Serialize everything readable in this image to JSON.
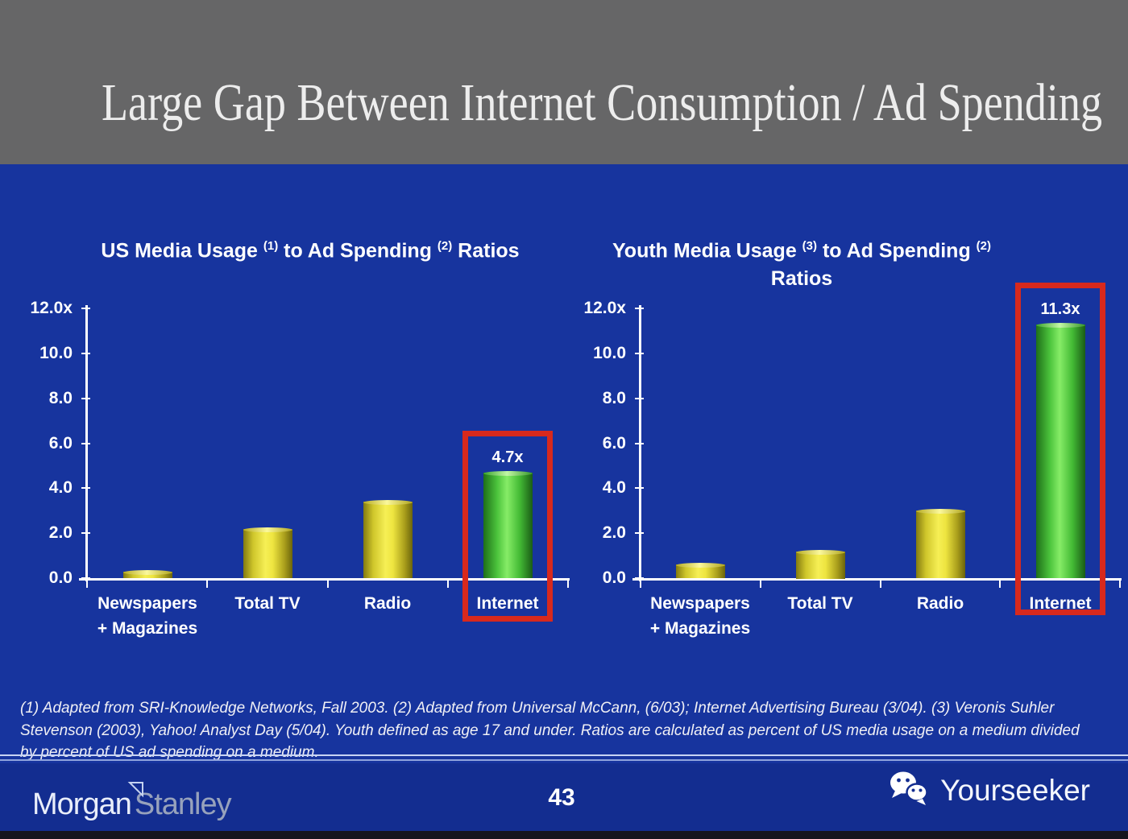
{
  "header": {
    "title": "Large Gap Between Internet Consumption / Ad Spending"
  },
  "chart_data": [
    {
      "type": "bar",
      "title": "US Media Usage (1) to Ad Spending (2) Ratios",
      "title_segments": [
        {
          "text": "US Media Usage "
        },
        {
          "sup": "(1)"
        },
        {
          "text": " to Ad Spending "
        },
        {
          "sup": "(2)"
        },
        {
          "text": " Ratios"
        }
      ],
      "categories": [
        "Newspapers + Magazines",
        "Total TV",
        "Radio",
        "Internet"
      ],
      "category_display": [
        [
          "Newspapers",
          "+ Magazines"
        ],
        [
          "Total TV"
        ],
        [
          "Radio"
        ],
        [
          "Internet"
        ]
      ],
      "values": [
        0.3,
        2.2,
        3.4,
        4.7
      ],
      "ylim": [
        0,
        12
      ],
      "ytick_labels": [
        "12.0x",
        "10.0",
        "8.0",
        "6.0",
        "4.0",
        "2.0",
        "0.0"
      ],
      "bar_styles": [
        "yellow",
        "yellow",
        "yellow",
        "green"
      ],
      "highlight": {
        "index": 3,
        "value_label": "4.7x"
      },
      "grid": false,
      "legend": "none"
    },
    {
      "type": "bar",
      "title": "Youth Media Usage (3) to Ad Spending (2) Ratios",
      "title_segments": [
        {
          "text": "Youth Media Usage "
        },
        {
          "sup": "(3)"
        },
        {
          "text": " to Ad Spending "
        },
        {
          "sup": "(2)"
        },
        {
          "break": true
        },
        {
          "text": "Ratios"
        }
      ],
      "categories": [
        "Newspapers + Magazines",
        "Total TV",
        "Radio",
        "Internet"
      ],
      "category_display": [
        [
          "Newspapers",
          "+ Magazines"
        ],
        [
          "Total TV"
        ],
        [
          "Radio"
        ],
        [
          "Internet"
        ]
      ],
      "values": [
        0.6,
        1.2,
        3.0,
        11.3
      ],
      "ylim": [
        0,
        12
      ],
      "ytick_labels": [
        "12.0x",
        "10.0",
        "8.0",
        "6.0",
        "4.0",
        "2.0",
        "0.0"
      ],
      "bar_styles": [
        "yellow",
        "yellow",
        "yellow",
        "green"
      ],
      "highlight": {
        "index": 3,
        "value_label": "11.3x"
      },
      "grid": false,
      "legend": "none"
    }
  ],
  "footnote": {
    "lines": [
      "(1) Adapted from SRI-Knowledge Networks, Fall 2003.  (2) Adapted from Universal McCann, (6/03); Internet Advertising Bureau (3/04). (3) Veronis Suhler",
      "Stevenson (2003), Yahoo! Analyst Day (5/04).  Youth defined as age 17 and under.  Ratios are calculated as percent of US media usage on a medium divided",
      "by percent of US ad spending on a medium."
    ]
  },
  "footer": {
    "brand": {
      "morgan": "Morgan",
      "stanley": "Stanley"
    },
    "page_number": "43",
    "watermark": "Yourseeker"
  },
  "icons": {
    "watermark_icon": "wechat-chat-bubbles",
    "brand_flag": "morgan-stanley-triangle-flag"
  },
  "colors": {
    "background_blue": "#17349E",
    "header_gray": "#666667",
    "footer_blue": "#132D90",
    "bar_yellow": "#EEE540",
    "bar_green": "#4CC43C",
    "highlight_red": "#D7291D",
    "axis_white": "#FFFFFF"
  }
}
